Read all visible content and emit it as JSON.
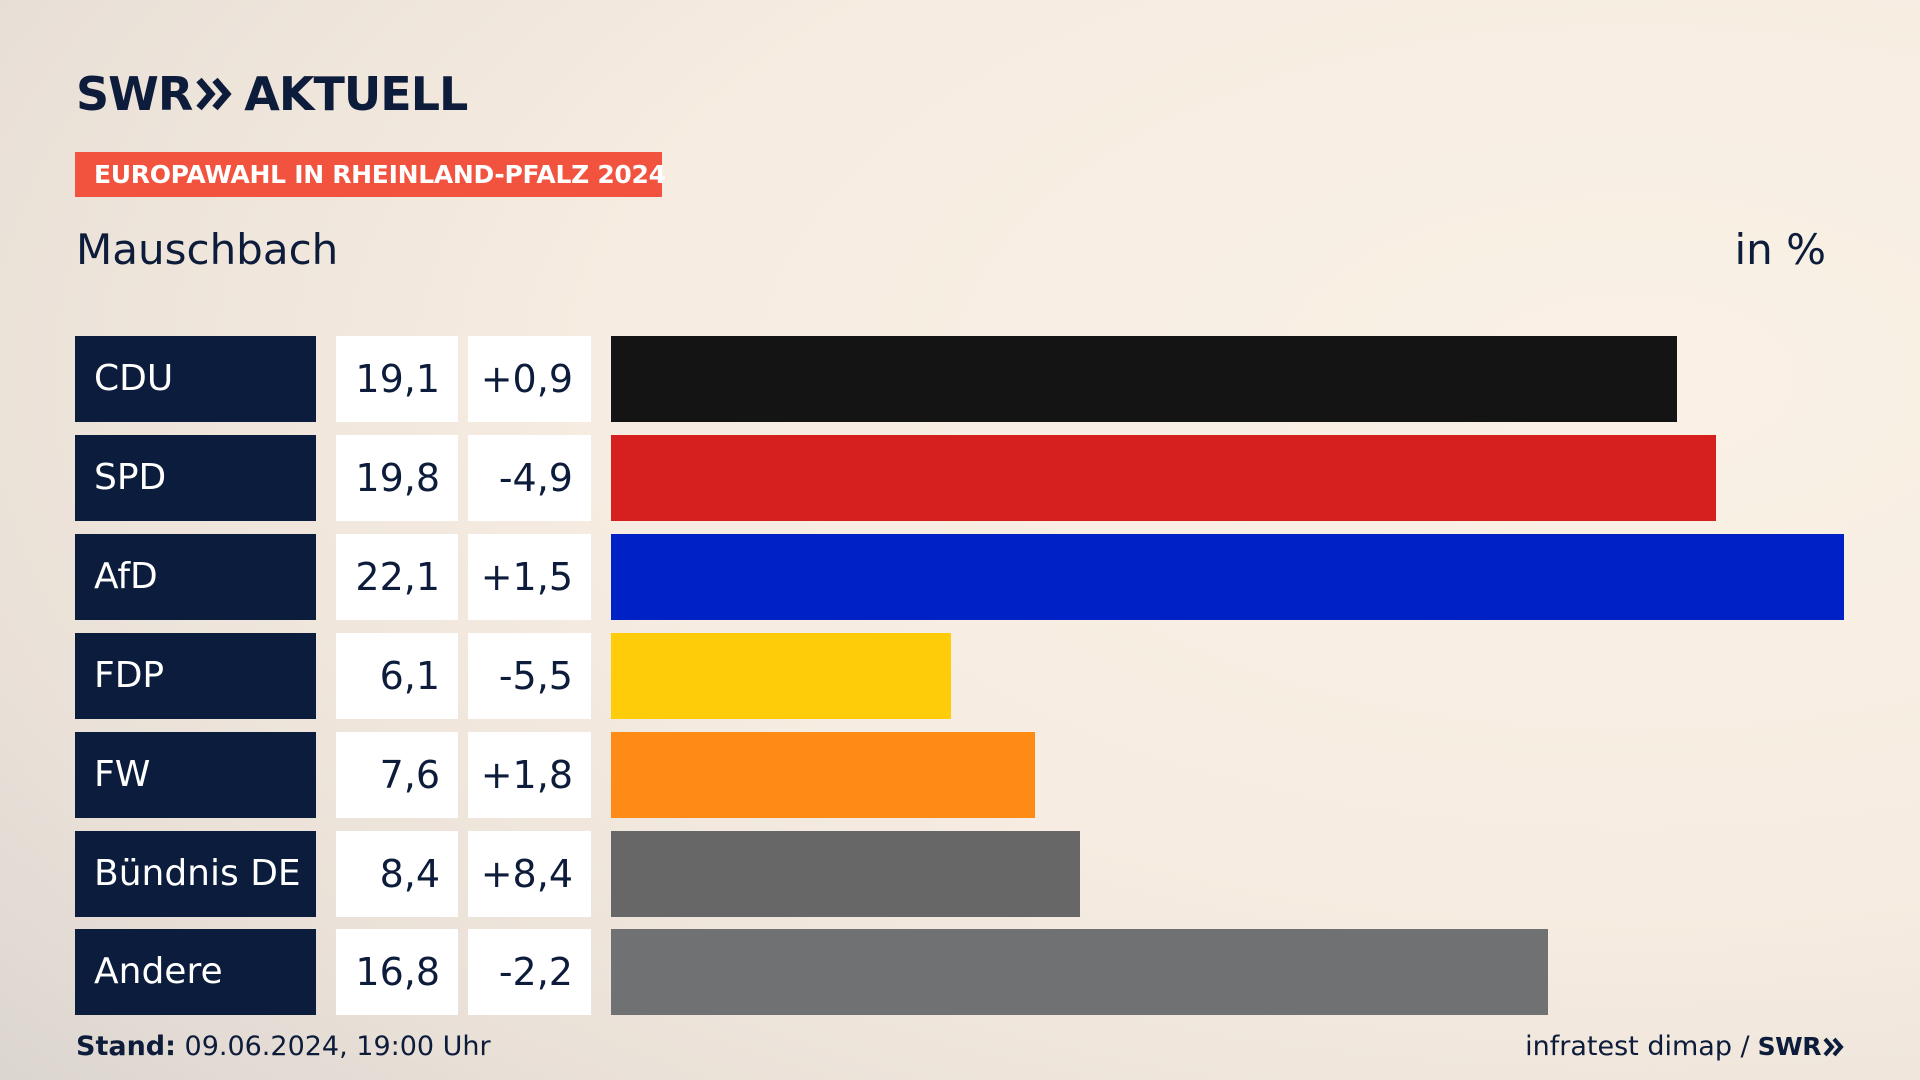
{
  "brand": {
    "logo_swr": "SWR",
    "logo_aktuell": "AKTUELL",
    "colors": {
      "navy": "#0c1c3c",
      "tag_red": "#f1533f"
    }
  },
  "header": {
    "tag": "EUROPAWAHL IN RHEINLAND-PFALZ 2024",
    "place": "Mauschbach",
    "unit": "in %"
  },
  "chart_data": {
    "type": "bar",
    "orientation": "horizontal",
    "title": "Mauschbach",
    "unit": "in %",
    "categories": [
      "CDU",
      "SPD",
      "AfD",
      "FDP",
      "FW",
      "Bündnis DE",
      "Andere"
    ],
    "values": [
      19.1,
      19.8,
      22.1,
      6.1,
      7.6,
      8.4,
      16.8
    ],
    "value_labels": [
      "19,1",
      "19,8",
      "22,1",
      "6,1",
      "7,6",
      "8,4",
      "16,8"
    ],
    "diff_labels": [
      "+0,9",
      "-4,9",
      "+1,5",
      "-5,5",
      "+1,8",
      "+8,4",
      "-2,2"
    ],
    "colors": [
      "#141414",
      "#d6201f",
      "#0021c6",
      "#ffcc0a",
      "#fe8b16",
      "#676767",
      "#707173"
    ],
    "xlim": [
      0,
      22.1
    ]
  },
  "footer": {
    "stand_label": "Stand:",
    "stand_value": "09.06.2024, 19:00 Uhr",
    "source": "infratest dimap /",
    "source_brand": "SWR"
  }
}
